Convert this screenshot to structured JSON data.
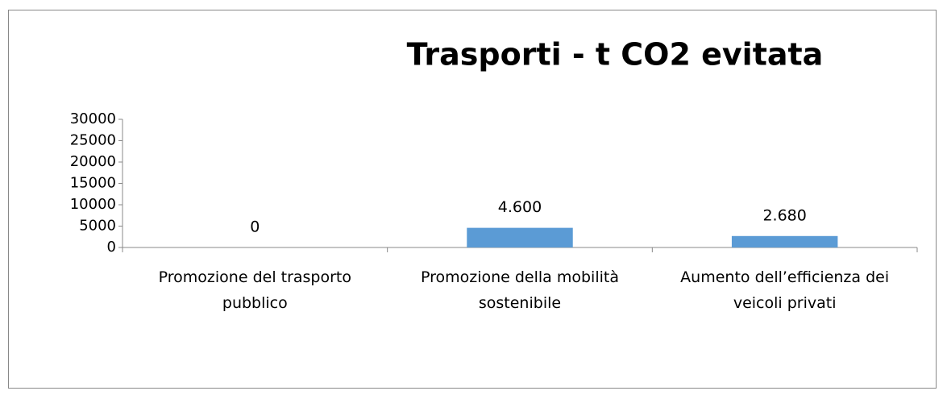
{
  "chart_data": {
    "type": "bar",
    "title": "Trasporti - t CO2 evitata",
    "categories": [
      "Promozione del trasporto pubblico",
      "Promozione della mobilità sostenibile",
      "Aumento dell’efficienza dei veicoli privati"
    ],
    "values": [
      0,
      4600,
      2680
    ],
    "value_labels": [
      "0",
      "4.600",
      "2.680"
    ],
    "color": "#5b9bd5",
    "ylim": [
      0,
      30000
    ],
    "yticks": [
      0,
      5000,
      10000,
      15000,
      20000,
      25000,
      30000
    ],
    "grid": false
  }
}
